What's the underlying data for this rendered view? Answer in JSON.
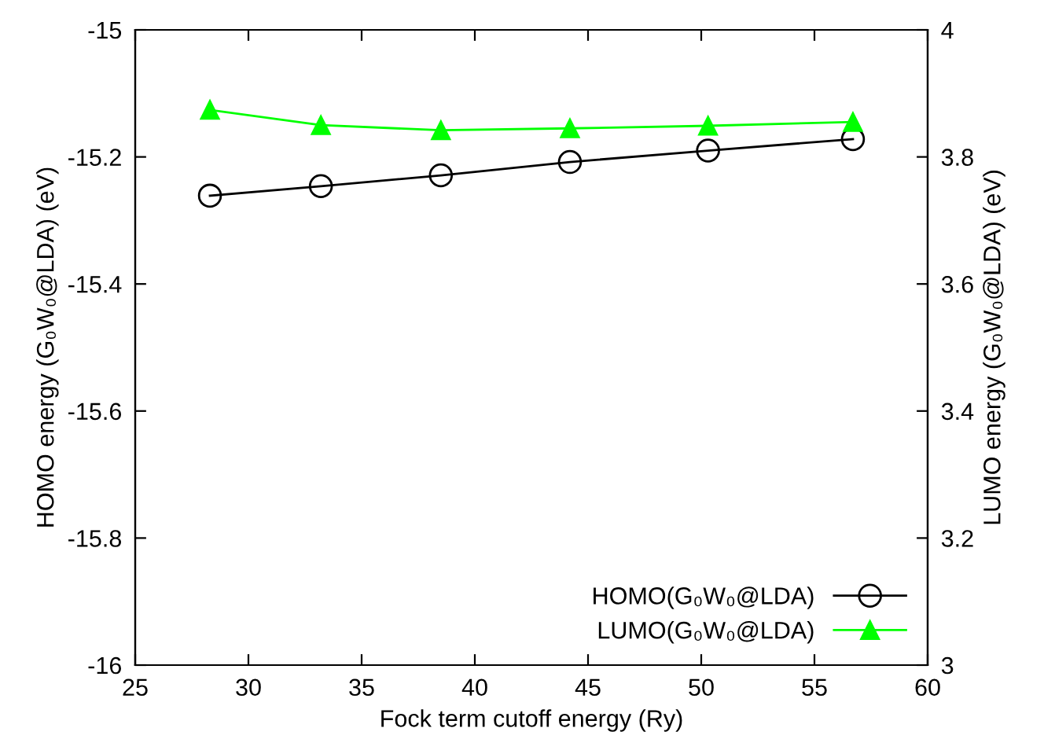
{
  "chart_data": {
    "type": "line",
    "xlabel": "Fock term cutoff energy (Ry)",
    "ylabel": "HOMO energy (G₀W₀@LDA) (eV)",
    "y2label": "LUMO energy (G₀W₀@LDA) (eV)",
    "x": [
      28.3,
      33.2,
      38.5,
      44.2,
      50.3,
      56.7
    ],
    "series": [
      {
        "name": "HOMO(G₀W₀@LDA)",
        "color": "#000000",
        "marker": "circle",
        "values": [
          -15.261,
          -15.246,
          -15.229,
          -15.208,
          -15.19,
          -15.172
        ]
      },
      {
        "name": "LUMO(G₀W₀@LDA)",
        "color": "#00ff00",
        "marker": "triangle",
        "axis": "y2",
        "values": [
          3.874,
          3.85,
          3.842,
          3.845,
          3.849,
          3.855
        ]
      }
    ],
    "xlim": [
      25,
      60
    ],
    "xticks": [
      25,
      30,
      35,
      40,
      45,
      50,
      55,
      60
    ],
    "ylim": [
      -16,
      -15
    ],
    "yticks": [
      -16,
      -15.8,
      -15.6,
      -15.4,
      -15.2,
      -15
    ],
    "y2lim": [
      3,
      4
    ],
    "y2ticks": [
      3,
      3.2,
      3.4,
      3.6,
      3.8,
      4
    ],
    "legend": "bottom right",
    "grid": false
  }
}
